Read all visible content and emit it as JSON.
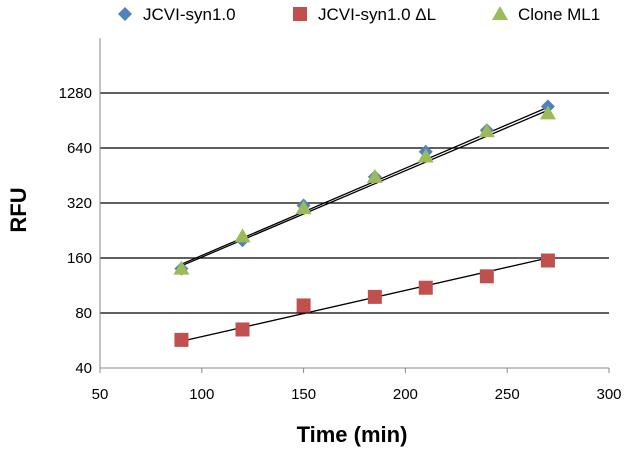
{
  "chart_data": {
    "type": "scatter",
    "title": "",
    "xlabel": "Time (min)",
    "ylabel": "RFU",
    "xlim": [
      50,
      300
    ],
    "ylim": [
      40,
      2560
    ],
    "y_scale": "log2",
    "x_ticks": [
      50,
      100,
      150,
      200,
      250,
      300
    ],
    "y_ticks": [
      40,
      80,
      160,
      320,
      640,
      1280
    ],
    "grid": "horizontal",
    "legend_position": "top",
    "series": [
      {
        "name": "JCVI-syn1.0",
        "marker": "diamond",
        "color": "#4F81BD",
        "points": [
          [
            90,
            140
          ],
          [
            120,
            200
          ],
          [
            150,
            310
          ],
          [
            185,
            445
          ],
          [
            210,
            610
          ],
          [
            240,
            800
          ],
          [
            270,
            1080
          ]
        ],
        "trendline": [
          [
            90,
            148
          ],
          [
            270,
            1070
          ]
        ]
      },
      {
        "name": "JCVI-syn1.0 ΔL",
        "marker": "square",
        "color": "#C0504D",
        "points": [
          [
            90,
            57
          ],
          [
            120,
            65
          ],
          [
            150,
            88
          ],
          [
            185,
            98
          ],
          [
            210,
            110
          ],
          [
            240,
            127
          ],
          [
            270,
            155
          ]
        ],
        "trendline": [
          [
            90,
            56
          ],
          [
            270,
            160
          ]
        ]
      },
      {
        "name": "Clone ML1",
        "marker": "triangle",
        "color": "#9BBB59",
        "points": [
          [
            90,
            140
          ],
          [
            120,
            210
          ],
          [
            150,
            300
          ],
          [
            185,
            445
          ],
          [
            210,
            575
          ],
          [
            240,
            790
          ],
          [
            270,
            990
          ]
        ],
        "trendline": [
          [
            90,
            145
          ],
          [
            270,
            1030
          ]
        ]
      }
    ]
  }
}
